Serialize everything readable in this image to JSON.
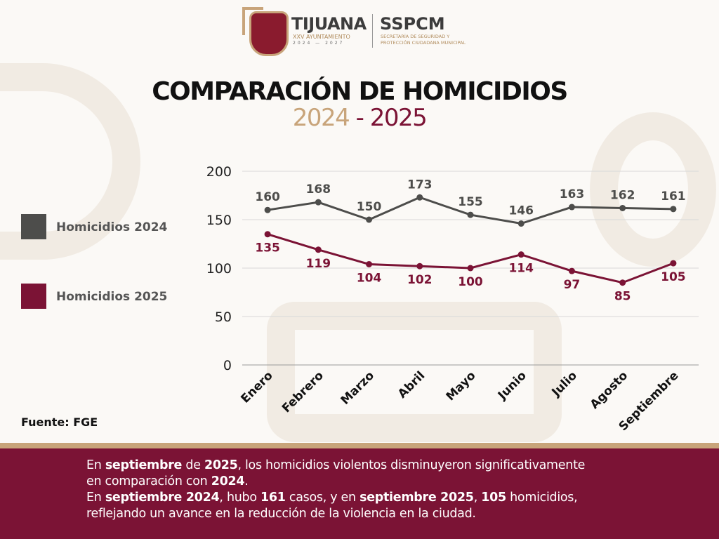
{
  "header": {
    "logo_text": "TIJUANA",
    "logo_sub": "XXV AYUNTAMIENTO",
    "logo_years": "2024 — 2027",
    "org": "SSPCM",
    "org_sub": "SECRETARÍA DE SEGURIDAD Y PROTECCIÓN CIUDADANA MUNICIPAL"
  },
  "title": "COMPARACIÓN DE HOMICIDIOS",
  "subtitle": {
    "year1": "2024",
    "sep": " - ",
    "year2": "2025"
  },
  "source": "Fuente: FGE",
  "colors": {
    "series_2024": "#4d4d4b",
    "series_2025": "#7b1335",
    "gold": "#c8a47a"
  },
  "chart_data": {
    "type": "line",
    "categories": [
      "Enero",
      "Febrero",
      "Marzo",
      "Abril",
      "Mayo",
      "Junio",
      "Julio",
      "Agosto",
      "Septiembre"
    ],
    "series": [
      {
        "name": "Homicidios 2024",
        "color": "#4d4d4b",
        "values": [
          160,
          168,
          150,
          173,
          155,
          146,
          163,
          162,
          161
        ]
      },
      {
        "name": "Homicidios 2025",
        "color": "#7b1335",
        "values": [
          135,
          119,
          104,
          102,
          100,
          114,
          97,
          85,
          105
        ]
      }
    ],
    "yticks": [
      "0",
      "50",
      "100",
      "150",
      "200"
    ],
    "ylim": [
      0,
      200
    ],
    "grid": "horizontal",
    "legend": "left",
    "data_labels": true
  },
  "note": {
    "l1": [
      "En ",
      "septiembre",
      " de ",
      "2025",
      ", los homicidios violentos disminuyeron significativamente"
    ],
    "l2": [
      "en comparación con ",
      "2024",
      "."
    ],
    "l3": [
      "En ",
      "septiembre 2024",
      ", hubo ",
      "161",
      " casos, y en ",
      "septiembre 2025",
      ", ",
      "105",
      " homicidios,"
    ],
    "l4": [
      "reflejando un avance en la reducción de la violencia en la ciudad."
    ]
  }
}
